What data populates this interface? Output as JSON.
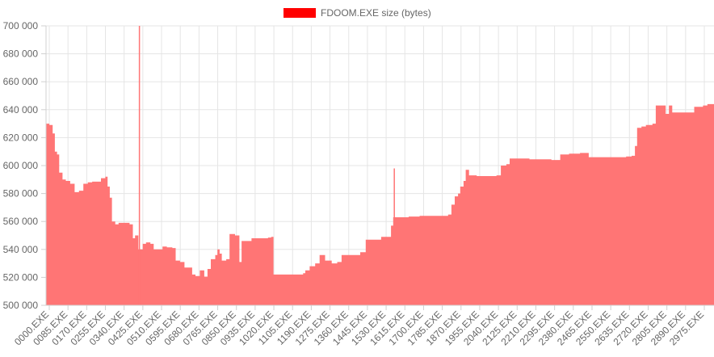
{
  "chart_data": {
    "type": "area",
    "legend": {
      "label": "FDOOM.EXE size (bytes)",
      "color": "#ff0000",
      "position": "top"
    },
    "fill_color": "#ff7575",
    "grid": true,
    "y_range": [
      500000,
      700000
    ],
    "y_ticks": [
      "500 000",
      "520 000",
      "540 000",
      "560 000",
      "580 000",
      "600 000",
      "620 000",
      "640 000",
      "660 000",
      "680 000",
      "700 000"
    ],
    "x_tick_labels": [
      "0000.EXE",
      "0085.EXE",
      "0170.EXE",
      "0255.EXE",
      "0340.EXE",
      "0425.EXE",
      "0510.EXE",
      "0595.EXE",
      "0680.EXE",
      "0765.EXE",
      "0850.EXE",
      "0935.EXE",
      "1020.EXE",
      "1105.EXE",
      "1190.EXE",
      "1275.EXE",
      "1360.EXE",
      "1445.EXE",
      "1530.EXE",
      "1615.EXE",
      "1700.EXE",
      "1785.EXE",
      "1870.EXE",
      "1955.EXE",
      "2040.EXE",
      "2125.EXE",
      "2210.EXE",
      "2295.EXE",
      "2380.EXE",
      "2465.EXE",
      "2550.EXE",
      "2635.EXE",
      "2720.EXE",
      "2805.EXE",
      "2890.EXE",
      "2975.EXE"
    ],
    "x_domain": [
      0,
      3040
    ],
    "series": [
      {
        "name": "FDOOM.EXE size (bytes)",
        "points": [
          [
            0,
            630000
          ],
          [
            15,
            629000
          ],
          [
            30,
            623000
          ],
          [
            40,
            610000
          ],
          [
            50,
            608000
          ],
          [
            60,
            595000
          ],
          [
            75,
            590000
          ],
          [
            90,
            589000
          ],
          [
            110,
            587000
          ],
          [
            130,
            581000
          ],
          [
            150,
            582000
          ],
          [
            165,
            582000
          ],
          [
            170,
            587000
          ],
          [
            190,
            588000
          ],
          [
            210,
            588500
          ],
          [
            230,
            588500
          ],
          [
            250,
            591000
          ],
          [
            270,
            592000
          ],
          [
            280,
            585000
          ],
          [
            290,
            577000
          ],
          [
            300,
            560000
          ],
          [
            315,
            558000
          ],
          [
            330,
            559000
          ],
          [
            360,
            559000
          ],
          [
            380,
            558000
          ],
          [
            395,
            548000
          ],
          [
            405,
            550000
          ],
          [
            420,
            540000
          ],
          [
            440,
            544000
          ],
          [
            455,
            545000
          ],
          [
            475,
            544000
          ],
          [
            490,
            540000
          ],
          [
            510,
            540000
          ],
          [
            530,
            542000
          ],
          [
            550,
            541500
          ],
          [
            575,
            541000
          ],
          [
            590,
            532000
          ],
          [
            610,
            531000
          ],
          [
            630,
            527000
          ],
          [
            650,
            527000
          ],
          [
            665,
            522000
          ],
          [
            680,
            521000
          ],
          [
            700,
            525000
          ],
          [
            720,
            520500
          ],
          [
            735,
            526000
          ],
          [
            750,
            533000
          ],
          [
            770,
            536000
          ],
          [
            780,
            540000
          ],
          [
            790,
            537000
          ],
          [
            800,
            532000
          ],
          [
            820,
            533000
          ],
          [
            835,
            551000
          ],
          [
            860,
            550000
          ],
          [
            880,
            531000
          ],
          [
            890,
            546000
          ],
          [
            920,
            546000
          ],
          [
            935,
            548000
          ],
          [
            970,
            548000
          ],
          [
            990,
            548000
          ],
          [
            1010,
            548500
          ],
          [
            1025,
            549000
          ],
          [
            1035,
            522000
          ],
          [
            1080,
            522000
          ],
          [
            1120,
            522000
          ],
          [
            1150,
            522000
          ],
          [
            1170,
            523000
          ],
          [
            1180,
            525000
          ],
          [
            1200,
            528000
          ],
          [
            1225,
            530000
          ],
          [
            1245,
            536000
          ],
          [
            1270,
            532000
          ],
          [
            1300,
            530000
          ],
          [
            1325,
            531000
          ],
          [
            1345,
            536000
          ],
          [
            1380,
            536000
          ],
          [
            1420,
            536000
          ],
          [
            1430,
            538000
          ],
          [
            1455,
            547000
          ],
          [
            1490,
            547000
          ],
          [
            1510,
            547000
          ],
          [
            1525,
            549000
          ],
          [
            1555,
            549000
          ],
          [
            1570,
            557000
          ],
          [
            1580,
            563000
          ],
          [
            1600,
            563000
          ],
          [
            1650,
            563500
          ],
          [
            1700,
            564000
          ],
          [
            1760,
            564000
          ],
          [
            1800,
            564000
          ],
          [
            1830,
            565000
          ],
          [
            1845,
            572000
          ],
          [
            1860,
            578000
          ],
          [
            1875,
            580000
          ],
          [
            1885,
            585000
          ],
          [
            1900,
            589000
          ],
          [
            1910,
            597000
          ],
          [
            1925,
            593000
          ],
          [
            1960,
            592500
          ],
          [
            2000,
            592500
          ],
          [
            2050,
            593000
          ],
          [
            2070,
            600000
          ],
          [
            2095,
            601000
          ],
          [
            2110,
            605000
          ],
          [
            2200,
            604500
          ],
          [
            2300,
            604000
          ],
          [
            2340,
            608000
          ],
          [
            2380,
            608500
          ],
          [
            2430,
            609000
          ],
          [
            2470,
            606000
          ],
          [
            2520,
            606000
          ],
          [
            2600,
            606000
          ],
          [
            2640,
            606500
          ],
          [
            2665,
            607000
          ],
          [
            2680,
            614000
          ],
          [
            2690,
            627000
          ],
          [
            2710,
            628000
          ],
          [
            2730,
            629000
          ],
          [
            2760,
            630000
          ],
          [
            2775,
            643000
          ],
          [
            2800,
            643000
          ],
          [
            2820,
            637000
          ],
          [
            2835,
            643000
          ],
          [
            2850,
            638000
          ],
          [
            2870,
            638000
          ],
          [
            2930,
            638000
          ],
          [
            2950,
            642000
          ],
          [
            2990,
            643000
          ],
          [
            3010,
            644000
          ],
          [
            3040,
            644000
          ]
        ]
      }
    ],
    "spikes": [
      {
        "x": 425,
        "y": 700000
      },
      {
        "x": 1585,
        "y": 598000
      }
    ]
  }
}
